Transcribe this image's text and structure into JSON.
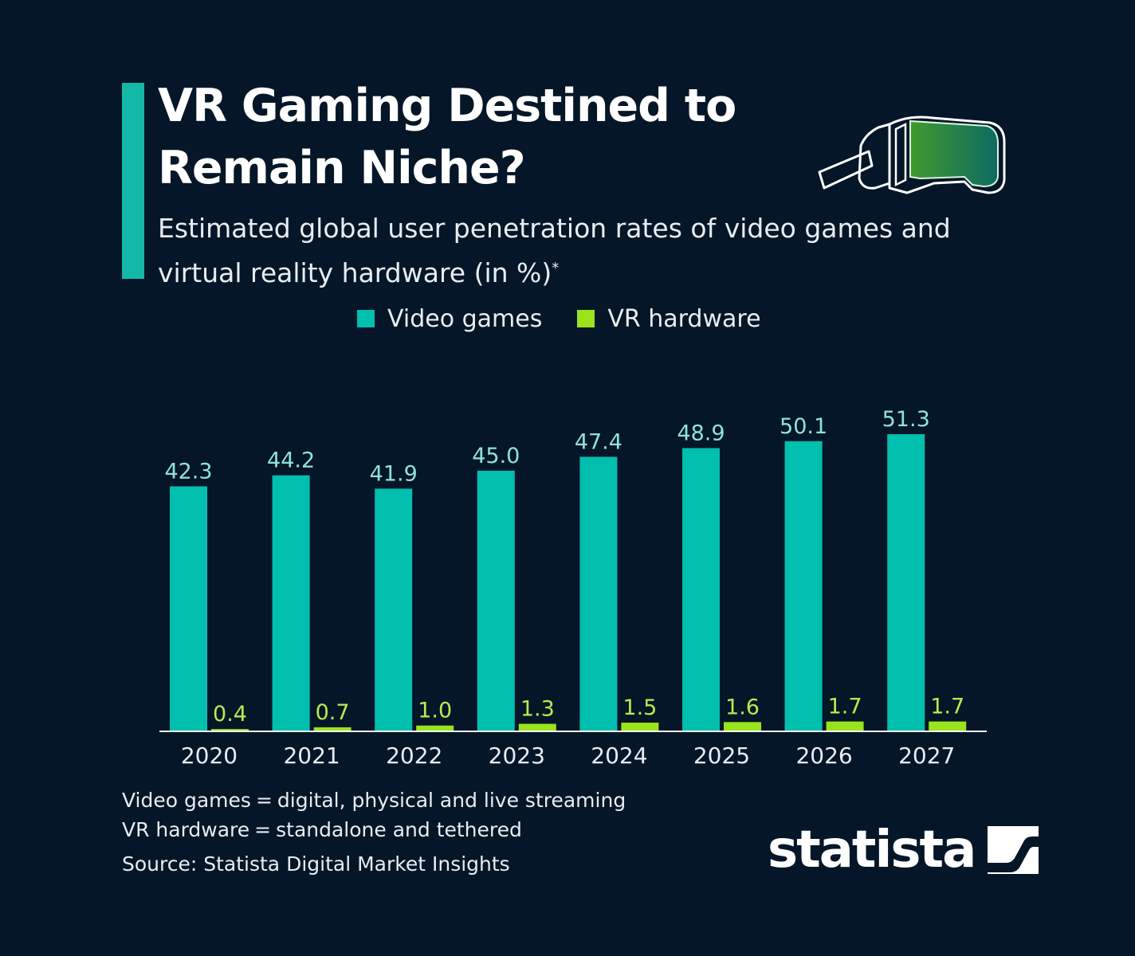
{
  "header": {
    "title": "VR Gaming Destined to Remain Niche?",
    "subtitle": "Estimated global user penetration rates of video games and virtual reality hardware (in %)",
    "subtitle_marker": "*"
  },
  "colors": {
    "background": "#041628",
    "accent": "#14b8a6",
    "video_games": "#00bfae",
    "vr_hardware": "#9be31c",
    "video_games_label": "#8fe3da",
    "vr_hardware_label": "#b6ec4f"
  },
  "icons": {
    "headset": "vr-headset-icon",
    "logo_mark": "statista-logo-mark"
  },
  "chart_data": {
    "type": "bar",
    "categories": [
      "2020",
      "2021",
      "2022",
      "2023",
      "2024",
      "2025",
      "2026",
      "2027"
    ],
    "series": [
      {
        "name": "Video games",
        "values": [
          42.3,
          44.2,
          41.9,
          45.0,
          47.4,
          48.9,
          50.1,
          51.3
        ],
        "labels": [
          "42.3",
          "44.2",
          "41.9",
          "45.0",
          "47.4",
          "48.9",
          "50.1",
          "51.3"
        ]
      },
      {
        "name": "VR hardware",
        "values": [
          0.4,
          0.7,
          1.0,
          1.3,
          1.5,
          1.6,
          1.7,
          1.7
        ],
        "labels": [
          "0.4",
          "0.7",
          "1.0",
          "1.3",
          "1.5",
          "1.6",
          "1.7",
          "1.7"
        ]
      }
    ],
    "ylim": [
      0,
      55
    ],
    "grid": false,
    "legend_position": "top-center"
  },
  "notes": [
    {
      "term": "Video games",
      "definition": "digital, physical and live streaming"
    },
    {
      "term": "VR hardware",
      "definition": "standalone and tethered"
    }
  ],
  "source": "Source: Statista Digital Market Insights",
  "logo": {
    "text": "statista"
  }
}
